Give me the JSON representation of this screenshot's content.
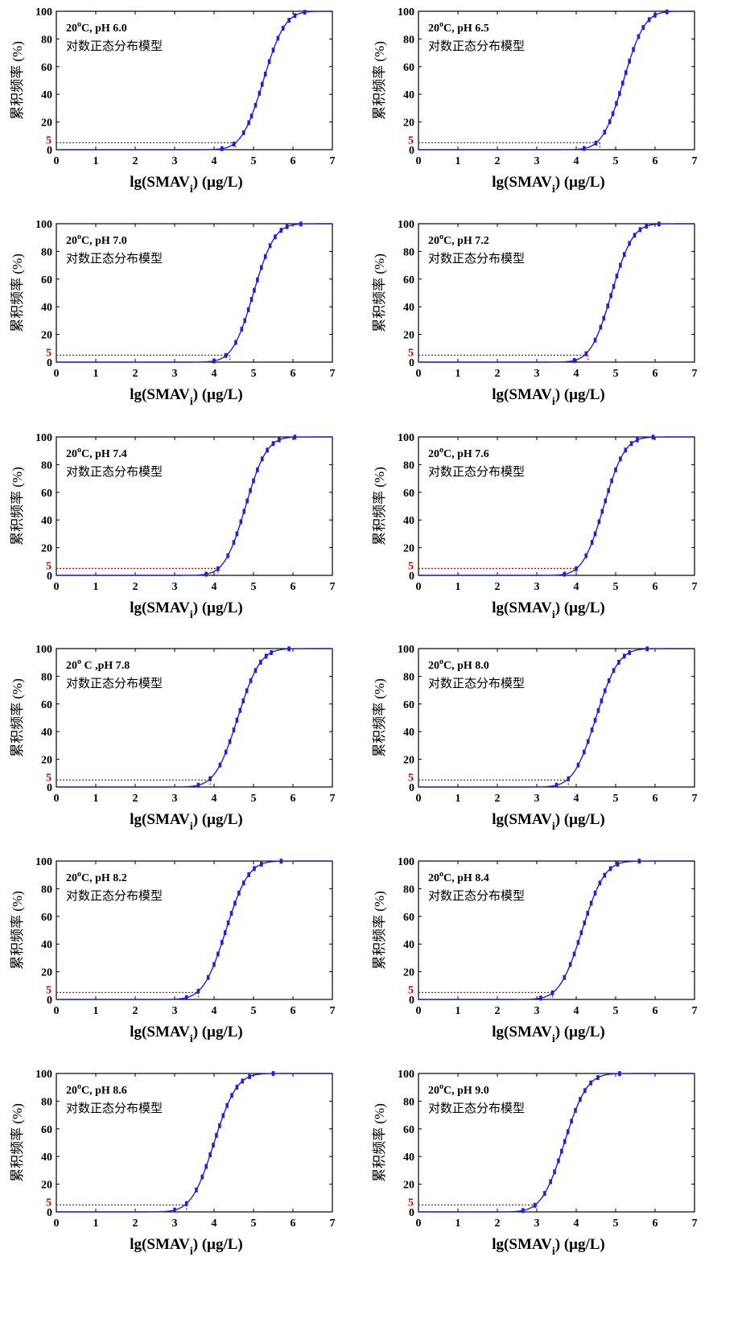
{
  "chart_data": [
    {
      "type": "line",
      "annotation_temp": "20",
      "annotation_sup": "o",
      "annotation_rest": "C, pH 6.0",
      "model": "对数正态分布模型",
      "ylabel": "累积频率 (%)",
      "xlabel_main": "lg(SMAV",
      "xlabel_sub": "i",
      "xlabel_unit": ") (μg/L)",
      "xlim": [
        0,
        7
      ],
      "ylim": [
        0,
        100
      ],
      "x_ticks": [
        "0",
        "1",
        "2",
        "3",
        "4",
        "5",
        "6",
        "7"
      ],
      "y_ticks": [
        "0",
        "20",
        "40",
        "60",
        "80",
        "100"
      ],
      "mu": 5.25,
      "sigma": 0.43,
      "hc5_y": 5,
      "hc5_label": "5",
      "hc5_x": 4.55,
      "points_x": [
        4.2,
        4.5,
        4.75,
        4.88,
        4.95,
        5.05,
        5.15,
        5.22,
        5.3,
        5.4,
        5.5,
        5.62,
        5.75,
        5.9,
        6.05,
        6.3
      ]
    },
    {
      "type": "line",
      "annotation_temp": "20",
      "annotation_sup": "o",
      "annotation_rest": "C, pH 6.5",
      "model": "对数正态分布模型",
      "ylabel": "累积频率 (%)",
      "xlabel_main": "lg(SMAV",
      "xlabel_sub": "i",
      "xlabel_unit": ") (μg/L)",
      "xlim": [
        0,
        7
      ],
      "ylim": [
        0,
        100
      ],
      "x_ticks": [
        "0",
        "1",
        "2",
        "3",
        "4",
        "5",
        "6",
        "7"
      ],
      "y_ticks": [
        "0",
        "20",
        "40",
        "60",
        "80",
        "100"
      ],
      "mu": 5.2,
      "sigma": 0.42,
      "hc5_y": 5,
      "hc5_label": "5",
      "hc5_x": 4.6,
      "points_x": [
        4.2,
        4.5,
        4.72,
        4.85,
        4.93,
        5.02,
        5.1,
        5.18,
        5.26,
        5.35,
        5.45,
        5.58,
        5.7,
        5.85,
        6.0,
        6.3
      ]
    },
    {
      "type": "line",
      "annotation_temp": "20",
      "annotation_sup": "o",
      "annotation_rest": "C, pH 7.0",
      "model": "对数正态分布模型",
      "ylabel": "累积频率 (%)",
      "xlabel_main": "lg(SMAV",
      "xlabel_sub": "i",
      "xlabel_unit": ") (μg/L)",
      "xlim": [
        0,
        7
      ],
      "ylim": [
        0,
        100
      ],
      "x_ticks": [
        "0",
        "1",
        "2",
        "3",
        "4",
        "5",
        "6",
        "7"
      ],
      "y_ticks": [
        "0",
        "20",
        "40",
        "60",
        "80",
        "100"
      ],
      "mu": 5.0,
      "sigma": 0.42,
      "hc5_y": 5,
      "hc5_label": "5",
      "hc5_x": 4.4,
      "points_x": [
        4.0,
        4.3,
        4.55,
        4.7,
        4.78,
        4.87,
        4.95,
        5.02,
        5.1,
        5.2,
        5.3,
        5.42,
        5.55,
        5.7,
        5.85,
        6.2
      ]
    },
    {
      "type": "line",
      "annotation_temp": "20",
      "annotation_sup": "o",
      "annotation_rest": "C, pH 7.2",
      "model": "对数正态分布模型",
      "ylabel": "累积频率 (%)",
      "xlabel_main": "lg(SMAV",
      "xlabel_sub": "i",
      "xlabel_unit": ") (μg/L)",
      "xlim": [
        0,
        7
      ],
      "ylim": [
        0,
        100
      ],
      "x_ticks": [
        "0",
        "1",
        "2",
        "3",
        "4",
        "5",
        "6",
        "7"
      ],
      "y_ticks": [
        "0",
        "20",
        "40",
        "60",
        "80",
        "100"
      ],
      "mu": 4.9,
      "sigma": 0.42,
      "hc5_y": 5,
      "hc5_label": "5",
      "hc5_x": 4.3,
      "points_x": [
        3.95,
        4.25,
        4.48,
        4.62,
        4.7,
        4.8,
        4.88,
        4.95,
        5.03,
        5.12,
        5.22,
        5.35,
        5.48,
        5.62,
        5.78,
        6.1
      ]
    },
    {
      "type": "line",
      "annotation_temp": "20",
      "annotation_sup": "o",
      "annotation_rest": "C, pH 7.4",
      "model": "对数正态分布模型",
      "ylabel": "累积频率 (%)",
      "xlabel_main": "lg(SMAV",
      "xlabel_sub": "i",
      "xlabel_unit": ") (μg/L)",
      "xlim": [
        0,
        7
      ],
      "ylim": [
        0,
        100
      ],
      "x_ticks": [
        "0",
        "1",
        "2",
        "3",
        "4",
        "5",
        "6",
        "7"
      ],
      "y_ticks": [
        "0",
        "20",
        "40",
        "60",
        "80",
        "100"
      ],
      "mu": 4.8,
      "sigma": 0.42,
      "hc5_y": 5,
      "hc5_label": "5",
      "hc5_x": 4.1,
      "points_x": [
        3.8,
        4.1,
        4.35,
        4.5,
        4.58,
        4.68,
        4.76,
        4.84,
        4.92,
        5.0,
        5.1,
        5.22,
        5.35,
        5.5,
        5.65,
        6.05
      ]
    },
    {
      "type": "line",
      "annotation_temp": "20",
      "annotation_sup": "o",
      "annotation_rest": "C, pH 7.6",
      "model": "对数正态分布模型",
      "ylabel": "累积频率 (%)",
      "xlabel_main": "lg(SMAV",
      "xlabel_sub": "i",
      "xlabel_unit": ") (μg/L)",
      "xlim": [
        0,
        7
      ],
      "ylim": [
        0,
        100
      ],
      "x_ticks": [
        "0",
        "1",
        "2",
        "3",
        "4",
        "5",
        "6",
        "7"
      ],
      "y_ticks": [
        "0",
        "20",
        "40",
        "60",
        "80",
        "100"
      ],
      "mu": 4.7,
      "sigma": 0.42,
      "hc5_y": 5,
      "hc5_label": "5",
      "hc5_x": 4.0,
      "points_x": [
        3.7,
        4.0,
        4.25,
        4.4,
        4.48,
        4.58,
        4.66,
        4.74,
        4.82,
        4.9,
        5.0,
        5.12,
        5.25,
        5.4,
        5.55,
        5.95
      ]
    },
    {
      "type": "line",
      "annotation_temp": "20",
      "annotation_sup": "o",
      "annotation_rest": " C ,pH 7.8",
      "model": "对数正态分布模型",
      "ylabel": "累积频率 (%)",
      "xlabel_main": "lg(SMAV",
      "xlabel_sub": "i",
      "xlabel_unit": ") (μg/L)",
      "xlim": [
        0,
        7
      ],
      "ylim": [
        0,
        100
      ],
      "x_ticks": [
        "0",
        "1",
        "2",
        "3",
        "4",
        "5",
        "6",
        "7"
      ],
      "y_ticks": [
        "0",
        "20",
        "40",
        "60",
        "80",
        "100"
      ],
      "mu": 4.6,
      "sigma": 0.45,
      "hc5_y": 5,
      "hc5_label": "5",
      "hc5_x": 3.9,
      "points_x": [
        3.6,
        3.9,
        4.15,
        4.3,
        4.4,
        4.5,
        4.58,
        4.66,
        4.74,
        4.83,
        4.93,
        5.05,
        5.18,
        5.32,
        5.45,
        5.9
      ]
    },
    {
      "type": "line",
      "annotation_temp": "20",
      "annotation_sup": "o",
      "annotation_rest": "C, pH 8.0",
      "model": "对数正态分布模型",
      "ylabel": "累积频率 (%)",
      "xlabel_main": "lg(SMAV",
      "xlabel_sub": "i",
      "xlabel_unit": ") (μg/L)",
      "xlim": [
        0,
        7
      ],
      "ylim": [
        0,
        100
      ],
      "x_ticks": [
        "0",
        "1",
        "2",
        "3",
        "4",
        "5",
        "6",
        "7"
      ],
      "y_ticks": [
        "0",
        "20",
        "40",
        "60",
        "80",
        "100"
      ],
      "mu": 4.5,
      "sigma": 0.45,
      "hc5_y": 5,
      "hc5_label": "5",
      "hc5_x": 3.8,
      "points_x": [
        3.5,
        3.8,
        4.05,
        4.2,
        4.3,
        4.4,
        4.48,
        4.56,
        4.64,
        4.73,
        4.83,
        4.95,
        5.08,
        5.22,
        5.35,
        5.8
      ]
    },
    {
      "type": "line",
      "annotation_temp": "20",
      "annotation_sup": "o",
      "annotation_rest": "C, pH 8.2",
      "model": "对数正态分布模型",
      "ylabel": "累积频率 (%)",
      "xlabel_main": "lg(SMAV",
      "xlabel_sub": "i",
      "xlabel_unit": ") (μg/L)",
      "xlim": [
        0,
        7
      ],
      "ylim": [
        0,
        100
      ],
      "x_ticks": [
        "0",
        "1",
        "2",
        "3",
        "4",
        "5",
        "6",
        "7"
      ],
      "y_ticks": [
        "0",
        "20",
        "40",
        "60",
        "80",
        "100"
      ],
      "mu": 4.3,
      "sigma": 0.45,
      "hc5_y": 5,
      "hc5_label": "5",
      "hc5_x": 3.6,
      "points_x": [
        3.3,
        3.6,
        3.85,
        4.0,
        4.1,
        4.2,
        4.28,
        4.36,
        4.44,
        4.53,
        4.63,
        4.75,
        4.88,
        5.02,
        5.2,
        5.7
      ]
    },
    {
      "type": "line",
      "annotation_temp": "20",
      "annotation_sup": "o",
      "annotation_rest": "C, pH 8.4",
      "model": "对数正态分布模型",
      "ylabel": "累积频率 (%)",
      "xlabel_main": "lg(SMAV",
      "xlabel_sub": "i",
      "xlabel_unit": ") (μg/L)",
      "xlim": [
        0,
        7
      ],
      "ylim": [
        0,
        100
      ],
      "x_ticks": [
        "0",
        "1",
        "2",
        "3",
        "4",
        "5",
        "6",
        "7"
      ],
      "y_ticks": [
        "0",
        "20",
        "40",
        "60",
        "80",
        "100"
      ],
      "mu": 4.15,
      "sigma": 0.45,
      "hc5_y": 5,
      "hc5_label": "5",
      "hc5_x": 3.4,
      "points_x": [
        3.1,
        3.4,
        3.7,
        3.85,
        3.95,
        4.05,
        4.13,
        4.21,
        4.29,
        4.38,
        4.48,
        4.6,
        4.72,
        4.87,
        5.05,
        5.6
      ]
    },
    {
      "type": "line",
      "annotation_temp": "20",
      "annotation_sup": "o",
      "annotation_rest": "C, pH 8.6",
      "model": "对数正态分布模型",
      "ylabel": "累积频率 (%)",
      "xlabel_main": "lg(SMAV",
      "xlabel_sub": "i",
      "xlabel_unit": ") (μg/L)",
      "xlim": [
        0,
        7
      ],
      "ylim": [
        0,
        100
      ],
      "x_ticks": [
        "0",
        "1",
        "2",
        "3",
        "4",
        "5",
        "6",
        "7"
      ],
      "y_ticks": [
        "0",
        "20",
        "40",
        "60",
        "80",
        "100"
      ],
      "mu": 4.0,
      "sigma": 0.45,
      "hc5_y": 5,
      "hc5_label": "5",
      "hc5_x": 3.3,
      "points_x": [
        3.0,
        3.3,
        3.55,
        3.7,
        3.8,
        3.9,
        3.98,
        4.06,
        4.14,
        4.23,
        4.33,
        4.45,
        4.58,
        4.72,
        4.9,
        5.5
      ]
    },
    {
      "type": "line",
      "annotation_temp": "20",
      "annotation_sup": "o",
      "annotation_rest": "C, pH 9.0",
      "model": "对数正态分布模型",
      "ylabel": "累积频率 (%)",
      "xlabel_main": "lg(SMAV",
      "xlabel_sub": "i",
      "xlabel_unit": ") (μg/L)",
      "xlim": [
        0,
        7
      ],
      "ylim": [
        0,
        100
      ],
      "x_ticks": [
        "0",
        "1",
        "2",
        "3",
        "4",
        "5",
        "6",
        "7"
      ],
      "y_ticks": [
        "0",
        "20",
        "40",
        "60",
        "80",
        "100"
      ],
      "mu": 3.7,
      "sigma": 0.45,
      "hc5_y": 5,
      "hc5_label": "5",
      "hc5_x": 3.0,
      "points_x": [
        2.65,
        2.95,
        3.2,
        3.35,
        3.45,
        3.55,
        3.63,
        3.71,
        3.79,
        3.88,
        3.98,
        4.1,
        4.22,
        4.37,
        4.55,
        5.1
      ]
    }
  ]
}
